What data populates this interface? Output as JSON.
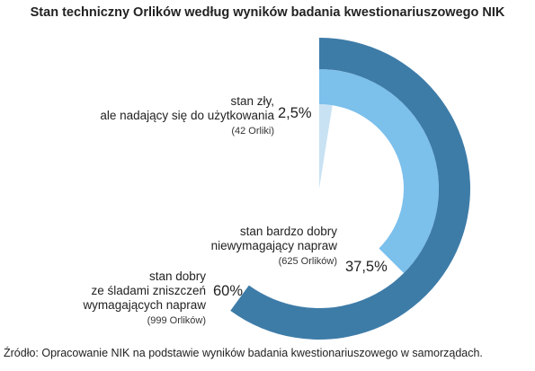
{
  "chart_data": {
    "type": "pie",
    "variant": "radial-bar",
    "title": "Stan techniczny Orlików według wyników badania kwestionariuszowego NIK",
    "slices": [
      {
        "label_line1": "stan zły,",
        "label_line2": "ale nadający się do użytkowania",
        "count_label": "(42 Orliki)",
        "count": 42,
        "value": 2.5,
        "percent_label": "2,5%",
        "color": "#c9e2f3"
      },
      {
        "label_line1": "stan bardzo dobry",
        "label_line2": "niewymagający napraw",
        "count_label": "(625 Orlików)",
        "count": 625,
        "value": 37.5,
        "percent_label": "37,5%",
        "color": "#7cc0ec"
      },
      {
        "label_line1": "stan dobry",
        "label_line2": "ze śladami zniszczeń",
        "label_line3": "wymagających napraw",
        "count_label": "(999 Orlików)",
        "count": 999,
        "value": 60,
        "percent_label": "60%",
        "color": "#3e7ca8"
      }
    ]
  },
  "source": "Źródło: Opracowanie NIK na podstawie wyników badania kwestionariuszowego w samorządach."
}
